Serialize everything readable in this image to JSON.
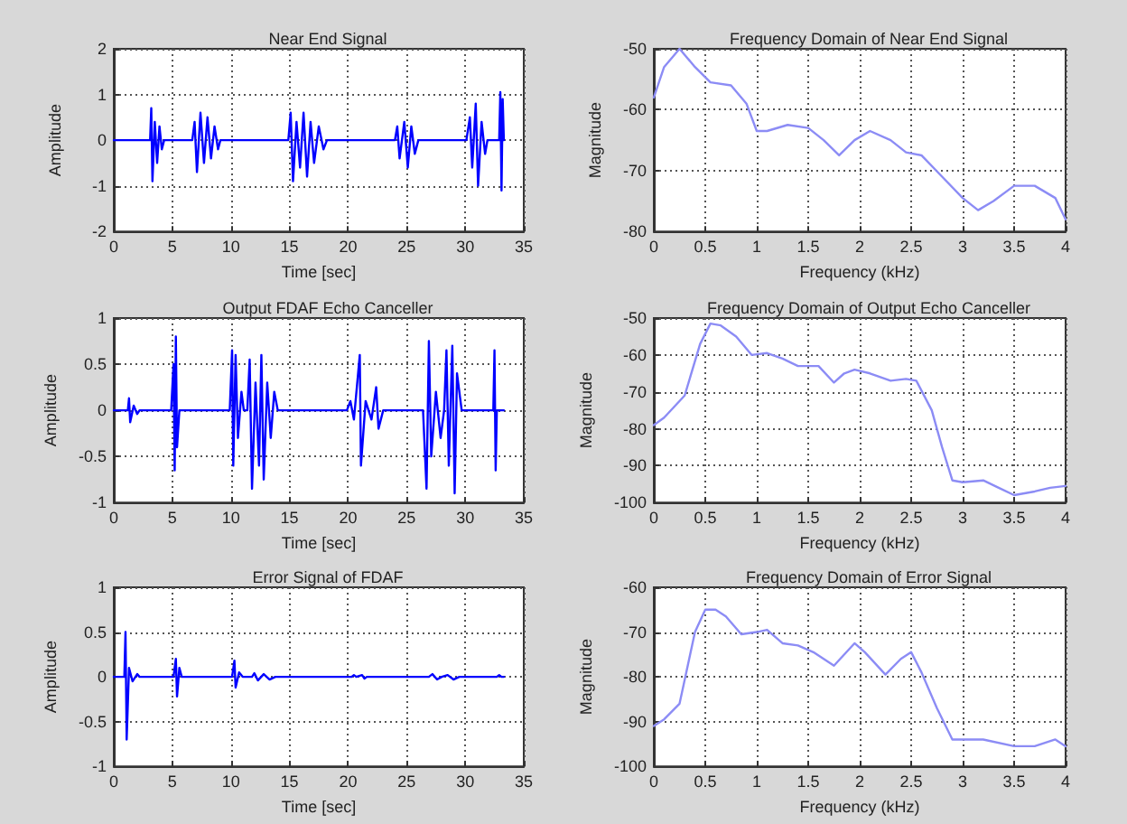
{
  "chart_data": [
    {
      "type": "line",
      "title": "Near End Signal",
      "xlabel": "Time [sec]",
      "ylabel": "Amplitude",
      "xlim": [
        0,
        35
      ],
      "xticks": [
        0,
        5,
        10,
        15,
        20,
        25,
        30,
        35
      ],
      "ylim": [
        -2,
        2
      ],
      "yticks": [
        -2,
        -1,
        0,
        1,
        2
      ],
      "grid": true,
      "line_style": "solid",
      "series": [
        {
          "color": "#0000ff",
          "x": [
            0,
            3.1,
            3.2,
            3.3,
            3.5,
            3.7,
            3.9,
            4.1,
            4.3,
            6.7,
            6.9,
            7.1,
            7.4,
            7.7,
            8.0,
            8.3,
            8.6,
            8.9,
            9.1,
            14.9,
            15.1,
            15.3,
            15.6,
            15.9,
            16.2,
            16.5,
            16.8,
            17.1,
            17.5,
            17.9,
            18.2,
            24.0,
            24.2,
            24.4,
            24.8,
            25.1,
            25.4,
            25.7,
            26.0,
            30.1,
            30.4,
            30.6,
            30.9,
            31.1,
            31.4,
            31.7,
            31.9,
            32.9,
            33.0,
            33.1,
            33.2,
            33.3
          ],
          "values": [
            0,
            0,
            0.7,
            -0.9,
            0.4,
            -0.5,
            0.3,
            -0.2,
            0,
            0,
            0.4,
            -0.7,
            0.6,
            -0.5,
            0.5,
            -0.4,
            0.3,
            -0.2,
            0,
            0,
            0.6,
            -0.9,
            0.4,
            -0.6,
            0.6,
            -0.8,
            0.4,
            -0.5,
            0.3,
            -0.2,
            0,
            0,
            0.3,
            -0.4,
            0.4,
            -0.6,
            0.3,
            -0.3,
            0,
            0,
            0.5,
            -0.6,
            0.8,
            -1.0,
            0.4,
            -0.3,
            0,
            0,
            1.05,
            -1.1,
            0.9,
            0
          ]
        }
      ]
    },
    {
      "type": "line",
      "title": "Frequency Domain of Near End Signal",
      "xlabel": "Frequency (kHz)",
      "ylabel": "Magnitude",
      "xlim": [
        0,
        4
      ],
      "xticks": [
        0,
        0.5,
        1,
        1.5,
        2,
        2.5,
        3,
        3.5,
        4
      ],
      "ylim": [
        -80,
        -50
      ],
      "yticks": [
        -80,
        -70,
        -60,
        -50
      ],
      "grid": true,
      "line_style": "solid",
      "series": [
        {
          "color": "#8c8cf5",
          "x": [
            0,
            0.1,
            0.25,
            0.4,
            0.55,
            0.75,
            0.9,
            1.0,
            1.1,
            1.3,
            1.5,
            1.65,
            1.8,
            1.95,
            2.1,
            2.3,
            2.45,
            2.6,
            2.8,
            3.0,
            3.15,
            3.3,
            3.5,
            3.7,
            3.9,
            4.0
          ],
          "values": [
            -58,
            -53,
            -50,
            -53,
            -55.5,
            -56,
            -59,
            -63.5,
            -63.5,
            -62.5,
            -63,
            -65,
            -67.5,
            -65,
            -63.5,
            -65,
            -67,
            -67.5,
            -71,
            -74.5,
            -76.5,
            -75,
            -72.5,
            -72.5,
            -74.5,
            -78
          ]
        }
      ]
    },
    {
      "type": "line",
      "title": "Output FDAF Echo Canceller",
      "xlabel": "Time [sec]",
      "ylabel": "Amplitude",
      "xlim": [
        0,
        35
      ],
      "xticks": [
        0,
        5,
        10,
        15,
        20,
        25,
        30,
        35
      ],
      "ylim": [
        -1,
        1
      ],
      "yticks": [
        -1,
        -0.5,
        0,
        0.5,
        1
      ],
      "grid": true,
      "line_style": "solid",
      "series": [
        {
          "color": "#0000ff",
          "x": [
            0,
            1.2,
            1.3,
            1.4,
            1.7,
            2.0,
            2.2,
            4.9,
            5.1,
            5.2,
            5.3,
            5.4,
            5.6,
            9.9,
            10.1,
            10.2,
            10.4,
            10.6,
            10.9,
            11.1,
            11.4,
            11.6,
            11.8,
            12.1,
            12.4,
            12.6,
            12.8,
            13.1,
            13.4,
            13.7,
            14.0,
            19.9,
            20.2,
            20.5,
            21.0,
            21.1,
            21.5,
            22.0,
            22.4,
            22.6,
            23.0,
            26.4,
            26.7,
            26.9,
            27.1,
            27.5,
            27.9,
            28.2,
            28.4,
            28.6,
            28.9,
            29.1,
            29.3,
            29.7,
            32.4,
            32.5,
            32.6,
            32.7,
            33.3
          ],
          "values": [
            0,
            0,
            0.13,
            -0.13,
            0.05,
            -0.04,
            0,
            0,
            0.5,
            -0.65,
            0.8,
            -0.4,
            0,
            0,
            0.65,
            -0.6,
            0.6,
            -0.3,
            0.2,
            0,
            0,
            0.55,
            -0.85,
            0.3,
            -0.6,
            0.6,
            -0.75,
            0.3,
            -0.3,
            0.2,
            0,
            0,
            0.1,
            -0.1,
            0.6,
            -0.6,
            0.1,
            -0.1,
            0.25,
            -0.2,
            0,
            0,
            -0.85,
            0.75,
            -0.5,
            0.2,
            -0.3,
            0,
            0.65,
            -0.6,
            0.7,
            -0.9,
            0.4,
            0,
            0,
            0.65,
            -0.65,
            0,
            0
          ]
        }
      ]
    },
    {
      "type": "line",
      "title": "Frequency Domain of Output Echo Canceller",
      "xlabel": "Frequency (kHz)",
      "ylabel": "Magnitude",
      "xlim": [
        0,
        4
      ],
      "xticks": [
        0,
        0.5,
        1,
        1.5,
        2,
        2.5,
        3,
        3.5,
        4
      ],
      "ylim": [
        -100,
        -50
      ],
      "yticks": [
        -100,
        -90,
        -80,
        -70,
        -60,
        -50
      ],
      "grid": true,
      "line_style": "solid",
      "series": [
        {
          "color": "#8c8cf5",
          "x": [
            0,
            0.1,
            0.3,
            0.45,
            0.55,
            0.65,
            0.8,
            0.95,
            1.1,
            1.25,
            1.4,
            1.6,
            1.75,
            1.85,
            1.95,
            2.1,
            2.3,
            2.45,
            2.55,
            2.7,
            2.8,
            2.9,
            3.0,
            3.2,
            3.35,
            3.5,
            3.7,
            3.85,
            4.0
          ],
          "values": [
            -79,
            -77,
            -71,
            -57,
            -51.5,
            -52,
            -55,
            -60,
            -59.5,
            -61,
            -63,
            -63,
            -67.5,
            -65,
            -64,
            -65,
            -67,
            -66.5,
            -67,
            -75,
            -85,
            -94,
            -94.5,
            -94,
            -96,
            -98,
            -97,
            -96,
            -95.5
          ]
        }
      ]
    },
    {
      "type": "line",
      "title": "Error Signal of FDAF",
      "xlabel": "Time [sec]",
      "ylabel": "Amplitude",
      "xlim": [
        0,
        35
      ],
      "xticks": [
        0,
        5,
        10,
        15,
        20,
        25,
        30,
        35
      ],
      "ylim": [
        -1,
        1
      ],
      "yticks": [
        -1,
        -0.5,
        0,
        0.5,
        1
      ],
      "grid": true,
      "line_style": "solid",
      "series": [
        {
          "color": "#0000ff",
          "x": [
            0,
            0.9,
            1.0,
            1.1,
            1.3,
            1.6,
            2.0,
            2.2,
            5.1,
            5.3,
            5.4,
            5.6,
            5.8,
            10.1,
            10.3,
            10.4,
            10.7,
            11.0,
            11.8,
            12.0,
            12.3,
            12.8,
            13.3,
            13.8,
            20.3,
            20.5,
            20.7,
            21.2,
            21.4,
            21.6,
            26.9,
            27.2,
            27.6,
            28.0,
            28.5,
            29.0,
            29.5,
            32.7,
            32.9,
            33.1,
            33.3
          ],
          "values": [
            0,
            0,
            0.5,
            -0.7,
            0.1,
            -0.05,
            0.03,
            0,
            0,
            0.2,
            -0.22,
            0.1,
            0,
            0,
            0.18,
            -0.12,
            0.05,
            0,
            0,
            0.04,
            -0.04,
            0.03,
            -0.03,
            0,
            0,
            0.02,
            0,
            0.02,
            -0.02,
            0,
            0,
            0.03,
            -0.03,
            0,
            0.02,
            -0.03,
            0,
            0,
            0.02,
            0,
            0
          ]
        }
      ]
    },
    {
      "type": "line",
      "title": "Frequency Domain of Error Signal",
      "xlabel": "Frequency (kHz)",
      "ylabel": "Magnitude",
      "xlim": [
        0,
        4
      ],
      "xticks": [
        0,
        0.5,
        1,
        1.5,
        2,
        2.5,
        3,
        3.5,
        4
      ],
      "ylim": [
        -100,
        -60
      ],
      "yticks": [
        -100,
        -90,
        -80,
        -70,
        -60
      ],
      "grid": true,
      "line_style": "solid",
      "series": [
        {
          "color": "#8c8cf5",
          "x": [
            0,
            0.1,
            0.25,
            0.4,
            0.5,
            0.6,
            0.7,
            0.85,
            1.0,
            1.1,
            1.25,
            1.4,
            1.55,
            1.75,
            1.95,
            2.05,
            2.25,
            2.4,
            2.5,
            2.6,
            2.75,
            2.9,
            3.0,
            3.2,
            3.5,
            3.7,
            3.9,
            4.0
          ],
          "values": [
            -91,
            -89.5,
            -86,
            -70,
            -65,
            -65,
            -66.5,
            -70.5,
            -70,
            -69.5,
            -72.5,
            -73,
            -74.5,
            -77.5,
            -72.5,
            -74.5,
            -79.5,
            -76,
            -74.5,
            -79,
            -87,
            -94,
            -94,
            -94,
            -95.5,
            -95.5,
            -94,
            -95.5
          ]
        }
      ]
    }
  ]
}
